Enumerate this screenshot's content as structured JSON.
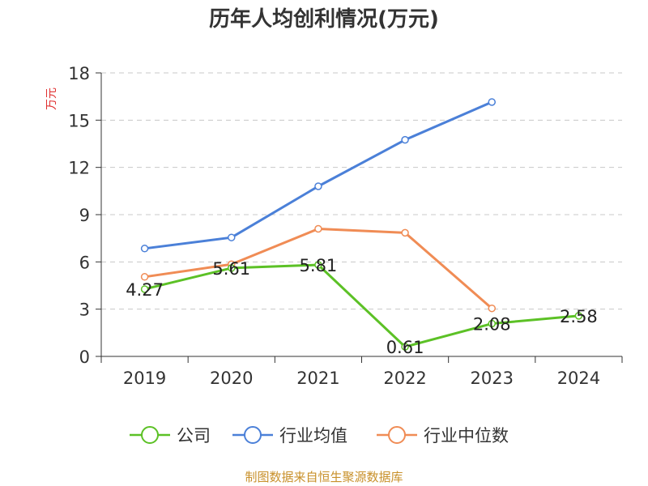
{
  "chart_data": {
    "type": "line",
    "title": "历年人均创利情况(万元)",
    "ylabel": "万元",
    "xlabel": "",
    "categories": [
      "2019",
      "2020",
      "2021",
      "2022",
      "2023",
      "2024"
    ],
    "ylim": [
      0,
      18
    ],
    "yticks": [
      0,
      3,
      6,
      9,
      12,
      15,
      18
    ],
    "grid": true,
    "legend_position": "bottom",
    "series": [
      {
        "name": "公司",
        "color": "#5cc126",
        "values": [
          4.27,
          5.61,
          5.81,
          0.61,
          2.08,
          2.58
        ],
        "labels": [
          "4.27",
          "5.61",
          "5.81",
          "0.61",
          "2.08",
          "2.58"
        ]
      },
      {
        "name": "行业均值",
        "color": "#4b80d8",
        "values": [
          6.85,
          7.55,
          10.8,
          13.75,
          16.15,
          null
        ]
      },
      {
        "name": "行业中位数",
        "color": "#f08c55",
        "values": [
          5.05,
          5.85,
          8.1,
          7.85,
          3.05,
          null
        ]
      }
    ]
  },
  "footer": "制图数据来自恒生聚源数据库"
}
